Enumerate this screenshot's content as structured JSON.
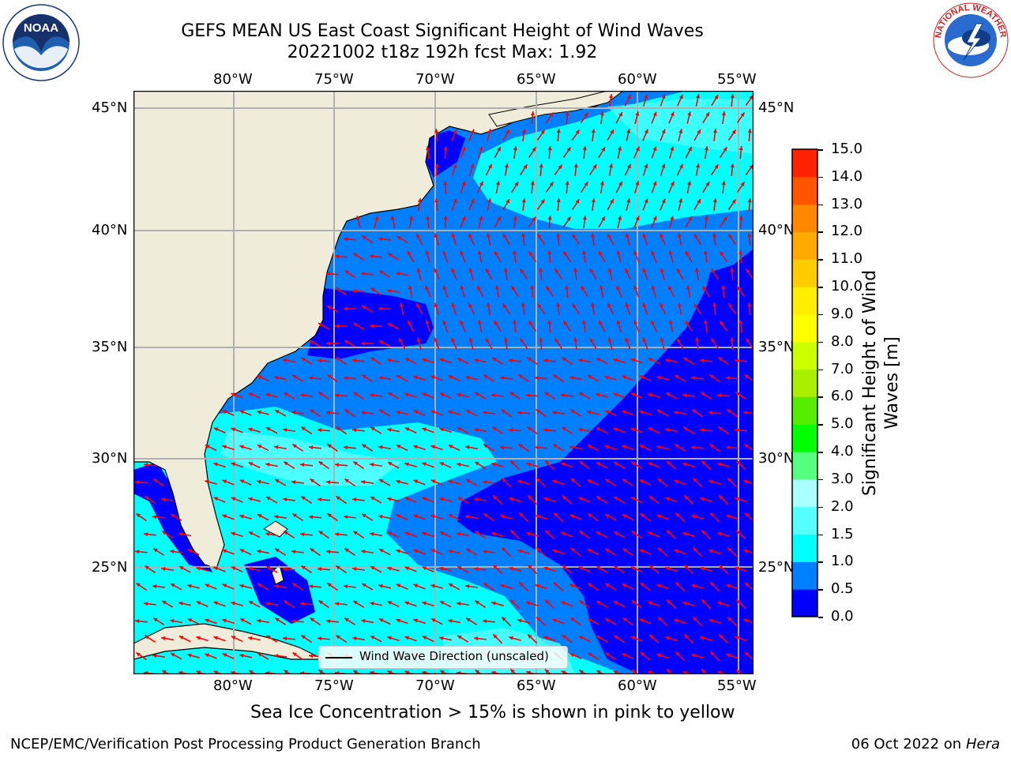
{
  "title": {
    "line1": "GEFS MEAN US East Coast Significant Height of Wind Waves",
    "line2": "20221002 t18z 192h fcst    Max: 1.92"
  },
  "map": {
    "lon_labels": [
      "80°W",
      "75°W",
      "70°W",
      "65°W",
      "60°W",
      "55°W"
    ],
    "lat_labels": [
      "45°N",
      "40°N",
      "35°N",
      "30°N",
      "25°N"
    ],
    "legend": "Wind Wave Direction (unscaled)",
    "land_color": "#efedda",
    "arrow_color": "#ff0000"
  },
  "colorbar": {
    "label_line1": "Significant Height of Wind",
    "label_line2": "Waves [m]",
    "ticks": [
      "0.0",
      "0.5",
      "1.0",
      "1.5",
      "2.0",
      "3.0",
      "4.0",
      "5.0",
      "6.0",
      "7.0",
      "8.0",
      "9.0",
      "10.0",
      "11.0",
      "12.0",
      "13.0",
      "14.0",
      "15.0"
    ],
    "colors": [
      "#0000ff",
      "#0080ff",
      "#00ffff",
      "#55ffff",
      "#aaffff",
      "#55ff80",
      "#00ff00",
      "#55ee00",
      "#aaee00",
      "#ccff00",
      "#ffff00",
      "#ffee00",
      "#ffcc00",
      "#ffaa00",
      "#ff8800",
      "#ff5500",
      "#ff2200"
    ]
  },
  "logos": {
    "noaa": "NOAA",
    "nws": "NATIONAL WEATHER SERVICE"
  },
  "footer": {
    "note": "Sea Ice Concentration > 15% is shown in pink to yellow",
    "left": "NCEP/EMC/Verification Post Processing Product Generation Branch",
    "right_date": "06 Oct 2022 on ",
    "right_machine": "Hera"
  }
}
